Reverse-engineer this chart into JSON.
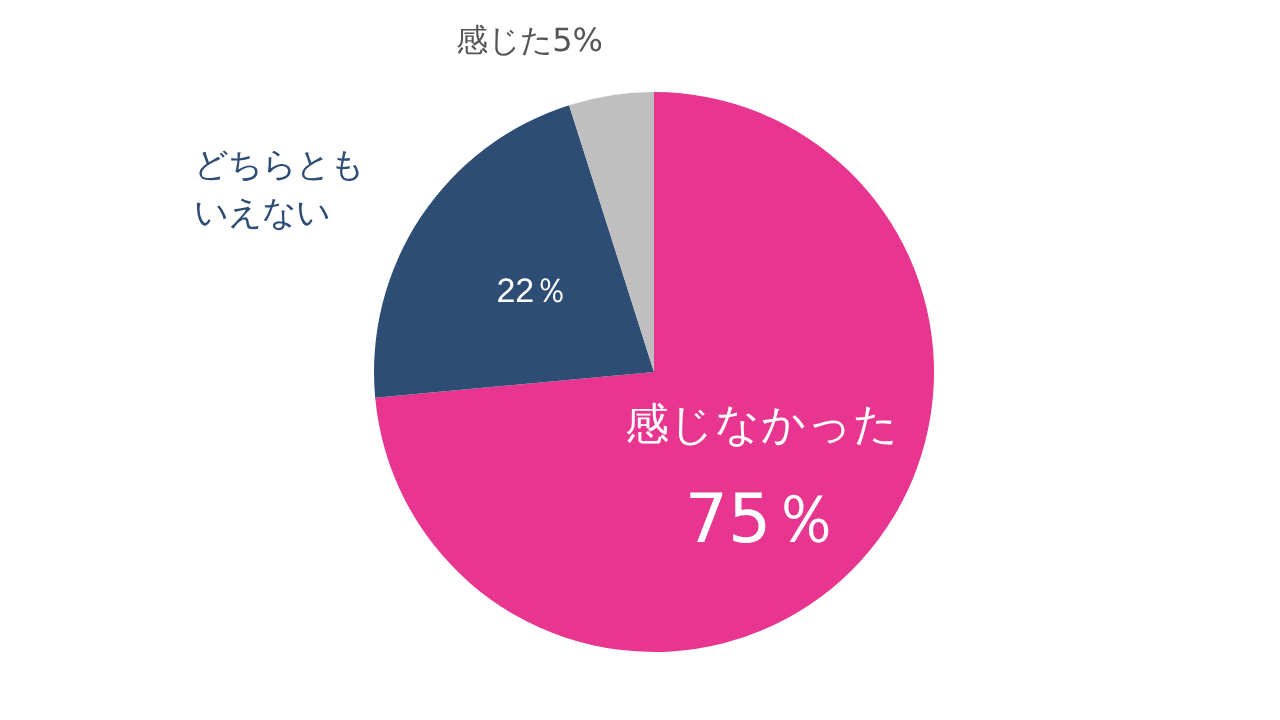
{
  "chart_data": {
    "type": "pie",
    "categories": [
      "感じなかった",
      "どちらともいえない",
      "感じた"
    ],
    "values": [
      75,
      22,
      5
    ],
    "colors": [
      "#e8358f",
      "#2e4d74",
      "#bfbfbf"
    ],
    "value_labels": [
      "75％",
      "22％",
      "5%"
    ]
  }
}
